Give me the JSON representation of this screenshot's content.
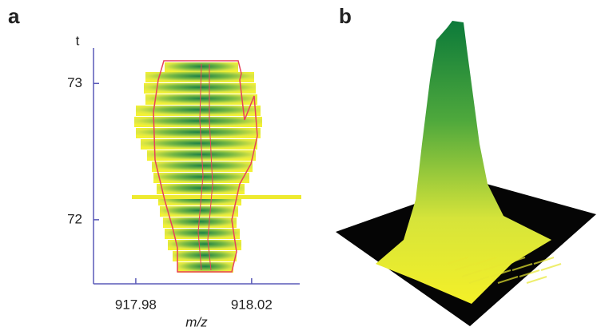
{
  "chart_data": {
    "type": "heatmap-figure",
    "panel_a": {
      "label": "a",
      "y_label": "t",
      "x_label": "m/z",
      "xlim": [
        917.9654,
        918.0366
      ],
      "ylim": [
        71.53,
        73.26
      ],
      "xticks": [
        917.98,
        918.02
      ],
      "yticks": [
        72,
        73
      ]
    },
    "panel_b": {
      "label": "b"
    }
  }
}
